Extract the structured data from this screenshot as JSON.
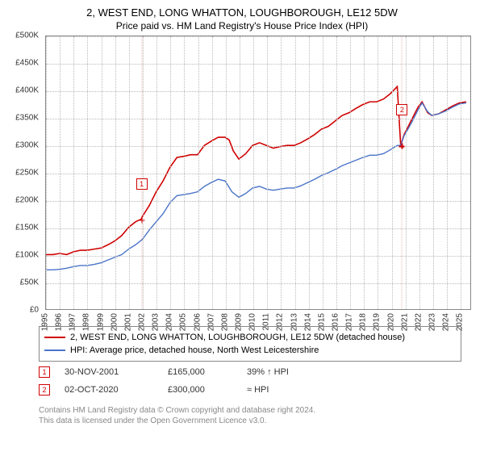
{
  "title": "2, WEST END, LONG WHATTON, LOUGHBOROUGH, LE12 5DW",
  "subtitle": "Price paid vs. HM Land Registry's House Price Index (HPI)",
  "chart": {
    "type": "line",
    "xlim": [
      1995,
      2025.8
    ],
    "ylim": [
      0,
      500000
    ],
    "ytick_step": 50000,
    "yticks": [
      "£0",
      "£50K",
      "£100K",
      "£150K",
      "£200K",
      "£250K",
      "£300K",
      "£350K",
      "£400K",
      "£450K",
      "£500K"
    ],
    "xticks": [
      1995,
      1996,
      1997,
      1998,
      1999,
      2000,
      2001,
      2002,
      2003,
      2004,
      2005,
      2006,
      2007,
      2008,
      2009,
      2010,
      2011,
      2012,
      2013,
      2014,
      2015,
      2016,
      2017,
      2018,
      2019,
      2020,
      2021,
      2022,
      2023,
      2024,
      2025
    ],
    "grid_color": "#bbbbbb",
    "background_color": "#ffffff",
    "axis_color": "#888888",
    "tick_fontsize": 10,
    "series": [
      {
        "name": "property",
        "label": "2, WEST END, LONG WHATTON, LOUGHBOROUGH, LE12 5DW (detached house)",
        "color": "#d00000",
        "line_width": 1.6,
        "points": [
          [
            1995.0,
            100000
          ],
          [
            1995.5,
            100000
          ],
          [
            1996.0,
            102000
          ],
          [
            1996.5,
            100000
          ],
          [
            1997.0,
            105000
          ],
          [
            1997.5,
            108000
          ],
          [
            1998.0,
            108000
          ],
          [
            1998.5,
            110000
          ],
          [
            1999.0,
            112000
          ],
          [
            1999.5,
            118000
          ],
          [
            2000.0,
            125000
          ],
          [
            2000.5,
            135000
          ],
          [
            2001.0,
            150000
          ],
          [
            2001.5,
            160000
          ],
          [
            2001.92,
            165000
          ],
          [
            2002.0,
            170000
          ],
          [
            2002.5,
            190000
          ],
          [
            2003.0,
            215000
          ],
          [
            2003.5,
            235000
          ],
          [
            2004.0,
            260000
          ],
          [
            2004.5,
            278000
          ],
          [
            2005.0,
            280000
          ],
          [
            2005.5,
            283000
          ],
          [
            2006.0,
            283000
          ],
          [
            2006.5,
            300000
          ],
          [
            2007.0,
            308000
          ],
          [
            2007.5,
            315000
          ],
          [
            2008.0,
            315000
          ],
          [
            2008.3,
            310000
          ],
          [
            2008.6,
            290000
          ],
          [
            2009.0,
            275000
          ],
          [
            2009.5,
            285000
          ],
          [
            2010.0,
            300000
          ],
          [
            2010.5,
            305000
          ],
          [
            2011.0,
            300000
          ],
          [
            2011.5,
            295000
          ],
          [
            2012.0,
            298000
          ],
          [
            2012.5,
            300000
          ],
          [
            2013.0,
            300000
          ],
          [
            2013.5,
            305000
          ],
          [
            2014.0,
            312000
          ],
          [
            2014.5,
            320000
          ],
          [
            2015.0,
            330000
          ],
          [
            2015.5,
            335000
          ],
          [
            2016.0,
            345000
          ],
          [
            2016.5,
            355000
          ],
          [
            2017.0,
            360000
          ],
          [
            2017.5,
            368000
          ],
          [
            2018.0,
            375000
          ],
          [
            2018.5,
            380000
          ],
          [
            2019.0,
            380000
          ],
          [
            2019.5,
            385000
          ],
          [
            2020.0,
            395000
          ],
          [
            2020.5,
            408000
          ],
          [
            2020.75,
            300000
          ],
          [
            2021.0,
            320000
          ],
          [
            2021.5,
            345000
          ],
          [
            2022.0,
            370000
          ],
          [
            2022.3,
            380000
          ],
          [
            2022.7,
            360000
          ],
          [
            2023.0,
            355000
          ],
          [
            2023.5,
            358000
          ],
          [
            2024.0,
            365000
          ],
          [
            2024.5,
            372000
          ],
          [
            2025.0,
            378000
          ],
          [
            2025.5,
            380000
          ]
        ]
      },
      {
        "name": "hpi",
        "label": "HPI: Average price, detached house, North West Leicestershire",
        "color": "#4a74c9",
        "line_width": 1.4,
        "points": [
          [
            1995.0,
            72000
          ],
          [
            1995.5,
            72000
          ],
          [
            1996.0,
            73000
          ],
          [
            1996.5,
            75000
          ],
          [
            1997.0,
            78000
          ],
          [
            1997.5,
            80000
          ],
          [
            1998.0,
            80000
          ],
          [
            1998.5,
            82000
          ],
          [
            1999.0,
            85000
          ],
          [
            1999.5,
            90000
          ],
          [
            2000.0,
            95000
          ],
          [
            2000.5,
            100000
          ],
          [
            2001.0,
            110000
          ],
          [
            2001.5,
            118000
          ],
          [
            2002.0,
            128000
          ],
          [
            2002.5,
            145000
          ],
          [
            2003.0,
            160000
          ],
          [
            2003.5,
            175000
          ],
          [
            2004.0,
            195000
          ],
          [
            2004.5,
            208000
          ],
          [
            2005.0,
            210000
          ],
          [
            2005.5,
            212000
          ],
          [
            2006.0,
            215000
          ],
          [
            2006.5,
            225000
          ],
          [
            2007.0,
            232000
          ],
          [
            2007.5,
            238000
          ],
          [
            2008.0,
            235000
          ],
          [
            2008.5,
            215000
          ],
          [
            2009.0,
            205000
          ],
          [
            2009.5,
            212000
          ],
          [
            2010.0,
            222000
          ],
          [
            2010.5,
            225000
          ],
          [
            2011.0,
            220000
          ],
          [
            2011.5,
            218000
          ],
          [
            2012.0,
            220000
          ],
          [
            2012.5,
            222000
          ],
          [
            2013.0,
            222000
          ],
          [
            2013.5,
            226000
          ],
          [
            2014.0,
            232000
          ],
          [
            2014.5,
            238000
          ],
          [
            2015.0,
            245000
          ],
          [
            2015.5,
            250000
          ],
          [
            2016.0,
            256000
          ],
          [
            2016.5,
            263000
          ],
          [
            2017.0,
            268000
          ],
          [
            2017.5,
            273000
          ],
          [
            2018.0,
            278000
          ],
          [
            2018.5,
            282000
          ],
          [
            2019.0,
            282000
          ],
          [
            2019.5,
            285000
          ],
          [
            2020.0,
            292000
          ],
          [
            2020.5,
            300000
          ],
          [
            2020.75,
            300000
          ],
          [
            2021.0,
            318000
          ],
          [
            2021.5,
            340000
          ],
          [
            2022.0,
            365000
          ],
          [
            2022.3,
            378000
          ],
          [
            2022.7,
            362000
          ],
          [
            2023.0,
            355000
          ],
          [
            2023.5,
            358000
          ],
          [
            2024.0,
            363000
          ],
          [
            2024.5,
            370000
          ],
          [
            2025.0,
            376000
          ],
          [
            2025.5,
            378000
          ]
        ]
      }
    ],
    "sale_markers": [
      {
        "idx": "1",
        "x": 2001.92,
        "y": 165000
      },
      {
        "idx": "2",
        "x": 2020.75,
        "y": 300000
      }
    ]
  },
  "legend": {
    "rows": [
      {
        "color": "#d00000",
        "label": "2, WEST END, LONG WHATTON, LOUGHBOROUGH, LE12 5DW (detached house)"
      },
      {
        "color": "#4a74c9",
        "label": "HPI: Average price, detached house, North West Leicestershire"
      }
    ]
  },
  "sales": [
    {
      "idx": "1",
      "date": "30-NOV-2001",
      "price": "£165,000",
      "delta": "39% ↑ HPI"
    },
    {
      "idx": "2",
      "date": "02-OCT-2020",
      "price": "£300,000",
      "delta": "≈ HPI"
    }
  ],
  "footer": {
    "line1": "Contains HM Land Registry data © Crown copyright and database right 2024.",
    "line2": "This data is licensed under the Open Government Licence v3.0."
  }
}
